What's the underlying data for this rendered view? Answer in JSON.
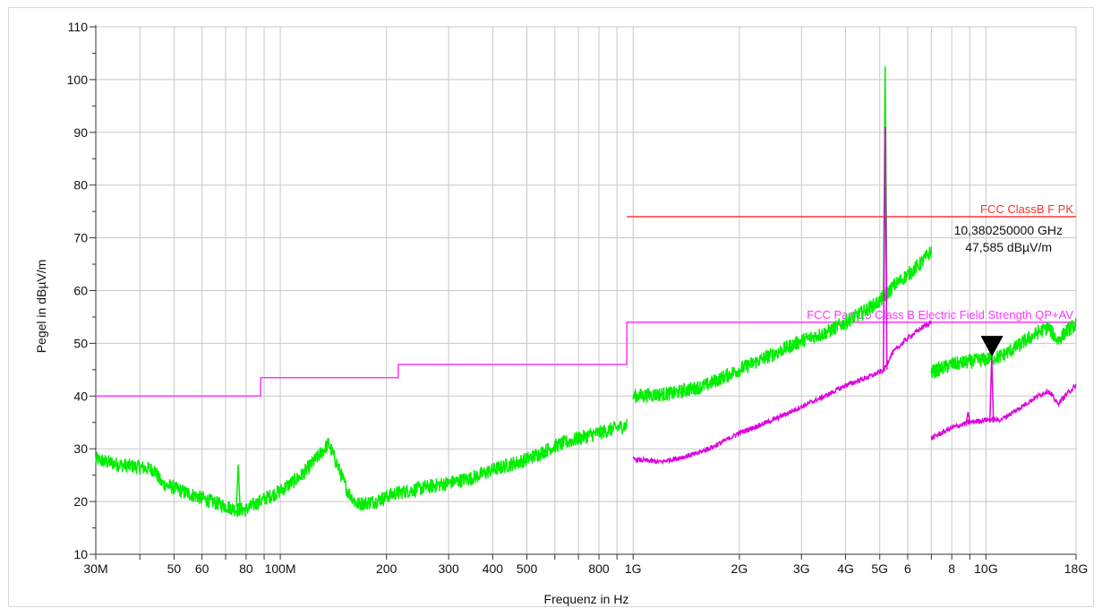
{
  "chart_data": {
    "type": "line",
    "title": "",
    "xlabel": "Frequenz in Hz",
    "ylabel": "Pegel in dBµV/m",
    "x_scale": "log",
    "xlim": [
      30000000,
      18000000000
    ],
    "ylim": [
      10,
      110
    ],
    "grid": true,
    "y_ticks": [
      10,
      20,
      30,
      40,
      50,
      60,
      70,
      80,
      90,
      100,
      110
    ],
    "x_ticks": [
      {
        "value": 30000000,
        "label": "30M"
      },
      {
        "value": 50000000,
        "label": "50"
      },
      {
        "value": 60000000,
        "label": "60"
      },
      {
        "value": 80000000,
        "label": "80"
      },
      {
        "value": 100000000,
        "label": "100M"
      },
      {
        "value": 200000000,
        "label": "200"
      },
      {
        "value": 300000000,
        "label": "300"
      },
      {
        "value": 400000000,
        "label": "400"
      },
      {
        "value": 500000000,
        "label": "500"
      },
      {
        "value": 800000000,
        "label": "800"
      },
      {
        "value": 1000000000,
        "label": "1G"
      },
      {
        "value": 2000000000,
        "label": "2G"
      },
      {
        "value": 3000000000,
        "label": "3G"
      },
      {
        "value": 4000000000,
        "label": "4G"
      },
      {
        "value": 5000000000,
        "label": "5G"
      },
      {
        "value": 6000000000,
        "label": "6"
      },
      {
        "value": 8000000000,
        "label": "8"
      },
      {
        "value": 10000000000,
        "label": "10G"
      },
      {
        "value": 18000000000,
        "label": "18G"
      }
    ],
    "limits": [
      {
        "name": "FCC ClassB F PK",
        "color": "#ff3333",
        "points": [
          [
            960000000,
            74
          ],
          [
            18000000000,
            74
          ]
        ]
      },
      {
        "name": "FCC Part 15 Class B Electric Field Strength QP+AV",
        "color": "#ff33ff",
        "points": [
          [
            30000000,
            40
          ],
          [
            88000000,
            40
          ],
          [
            88000000,
            43.5
          ],
          [
            216000000,
            43.5
          ],
          [
            216000000,
            46
          ],
          [
            960000000,
            46
          ],
          [
            960000000,
            54
          ],
          [
            18000000000,
            54
          ]
        ]
      }
    ],
    "series": [
      {
        "color": "#00ee00",
        "segments": [
          [
            [
              30000000,
              28
            ],
            [
              35000000,
              27
            ],
            [
              40000000,
              26.5
            ],
            [
              44000000,
              26
            ],
            [
              46000000,
              23.5
            ],
            [
              55000000,
              21.5
            ],
            [
              65000000,
              19.8
            ],
            [
              75000000,
              18.5
            ],
            [
              80000000,
              18.5
            ],
            [
              90000000,
              20.5
            ],
            [
              100000000,
              22
            ],
            [
              115000000,
              25
            ],
            [
              130000000,
              29
            ],
            [
              137000000,
              31
            ],
            [
              145000000,
              27
            ],
            [
              155000000,
              22
            ],
            [
              165000000,
              19.5
            ],
            [
              185000000,
              20
            ],
            [
              210000000,
              21.5
            ],
            [
              250000000,
              22.5
            ],
            [
              300000000,
              23.5
            ],
            [
              350000000,
              24.5
            ],
            [
              400000000,
              26
            ],
            [
              500000000,
              28
            ],
            [
              600000000,
              30.5
            ],
            [
              700000000,
              32
            ],
            [
              800000000,
              33
            ],
            [
              960000000,
              34.5
            ]
          ],
          [
            [
              1000000000,
              40
            ],
            [
              1300000000,
              40.5
            ],
            [
              1600000000,
              42
            ],
            [
              2000000000,
              45
            ],
            [
              2500000000,
              48
            ],
            [
              3000000000,
              50.5
            ],
            [
              3500000000,
              52
            ],
            [
              4000000000,
              54
            ],
            [
              4500000000,
              56
            ],
            [
              5000000000,
              58
            ],
            [
              5500000000,
              61
            ],
            [
              6000000000,
              63
            ],
            [
              6500000000,
              65
            ],
            [
              7000000000,
              67.5
            ]
          ],
          [
            [
              7000000000,
              44.5
            ],
            [
              8000000000,
              46
            ],
            [
              9000000000,
              46.5
            ],
            [
              10000000000,
              47
            ],
            [
              11000000000,
              47.5
            ],
            [
              12000000000,
              49
            ],
            [
              14000000000,
              52
            ],
            [
              15000000000,
              53
            ],
            [
              16000000000,
              50.5
            ],
            [
              17000000000,
              52.5
            ],
            [
              18000000000,
              53.5
            ]
          ]
        ],
        "spikes": [
          [
            76000000,
            27
          ],
          [
            5180000000,
            102.5
          ]
        ]
      },
      {
        "color": "#dd00dd",
        "segments": [
          [
            [
              1000000000,
              28
            ],
            [
              1200000000,
              27.5
            ],
            [
              1500000000,
              29
            ],
            [
              1700000000,
              30.5
            ],
            [
              2000000000,
              33
            ],
            [
              2500000000,
              35.5
            ],
            [
              3000000000,
              38
            ],
            [
              3500000000,
              40
            ],
            [
              4000000000,
              42
            ],
            [
              4800000000,
              44
            ],
            [
              5150000000,
              45
            ],
            [
              5400000000,
              48
            ],
            [
              6000000000,
              51
            ],
            [
              6600000000,
              53
            ],
            [
              7000000000,
              54
            ]
          ],
          [
            [
              7000000000,
              32
            ],
            [
              8000000000,
              34
            ],
            [
              9000000000,
              35
            ],
            [
              10000000000,
              35.5
            ],
            [
              11000000000,
              35.5
            ],
            [
              12000000000,
              37
            ],
            [
              14000000000,
              40
            ],
            [
              15000000000,
              41
            ],
            [
              16000000000,
              38.5
            ],
            [
              17000000000,
              40.5
            ],
            [
              18000000000,
              42
            ]
          ]
        ],
        "spikes": [
          [
            5180000000,
            91
          ],
          [
            10380000000,
            47.6
          ],
          [
            8900000000,
            37
          ]
        ]
      }
    ],
    "marker": {
      "x": 10380250000,
      "y": 47.585,
      "line1": "10,380250000 GHz",
      "line2": "47,585 dBµV/m"
    }
  }
}
